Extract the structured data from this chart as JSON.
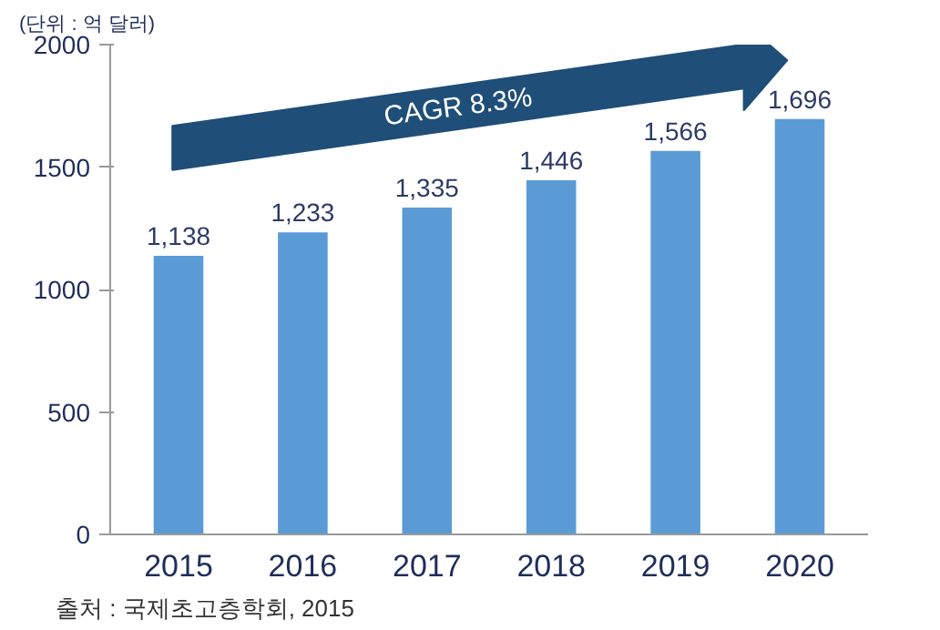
{
  "chart_data": {
    "type": "bar",
    "categories": [
      "2015",
      "2016",
      "2017",
      "2018",
      "2019",
      "2020"
    ],
    "values": [
      1138,
      1233,
      1335,
      1446,
      1566,
      1696
    ],
    "color": "#5b9bd5",
    "value_labels": [
      "1,138",
      "1,233",
      "1,335",
      "1,446",
      "1,566",
      "1,696"
    ],
    "ylim": [
      0,
      2000
    ],
    "yticks": [
      0,
      500,
      1000,
      1500,
      2000
    ],
    "grid": false,
    "annotations": [
      "(단위 : 억 달러)",
      "CAGR 8.3%",
      "출처 : 국제초고층학회, 2015"
    ]
  }
}
